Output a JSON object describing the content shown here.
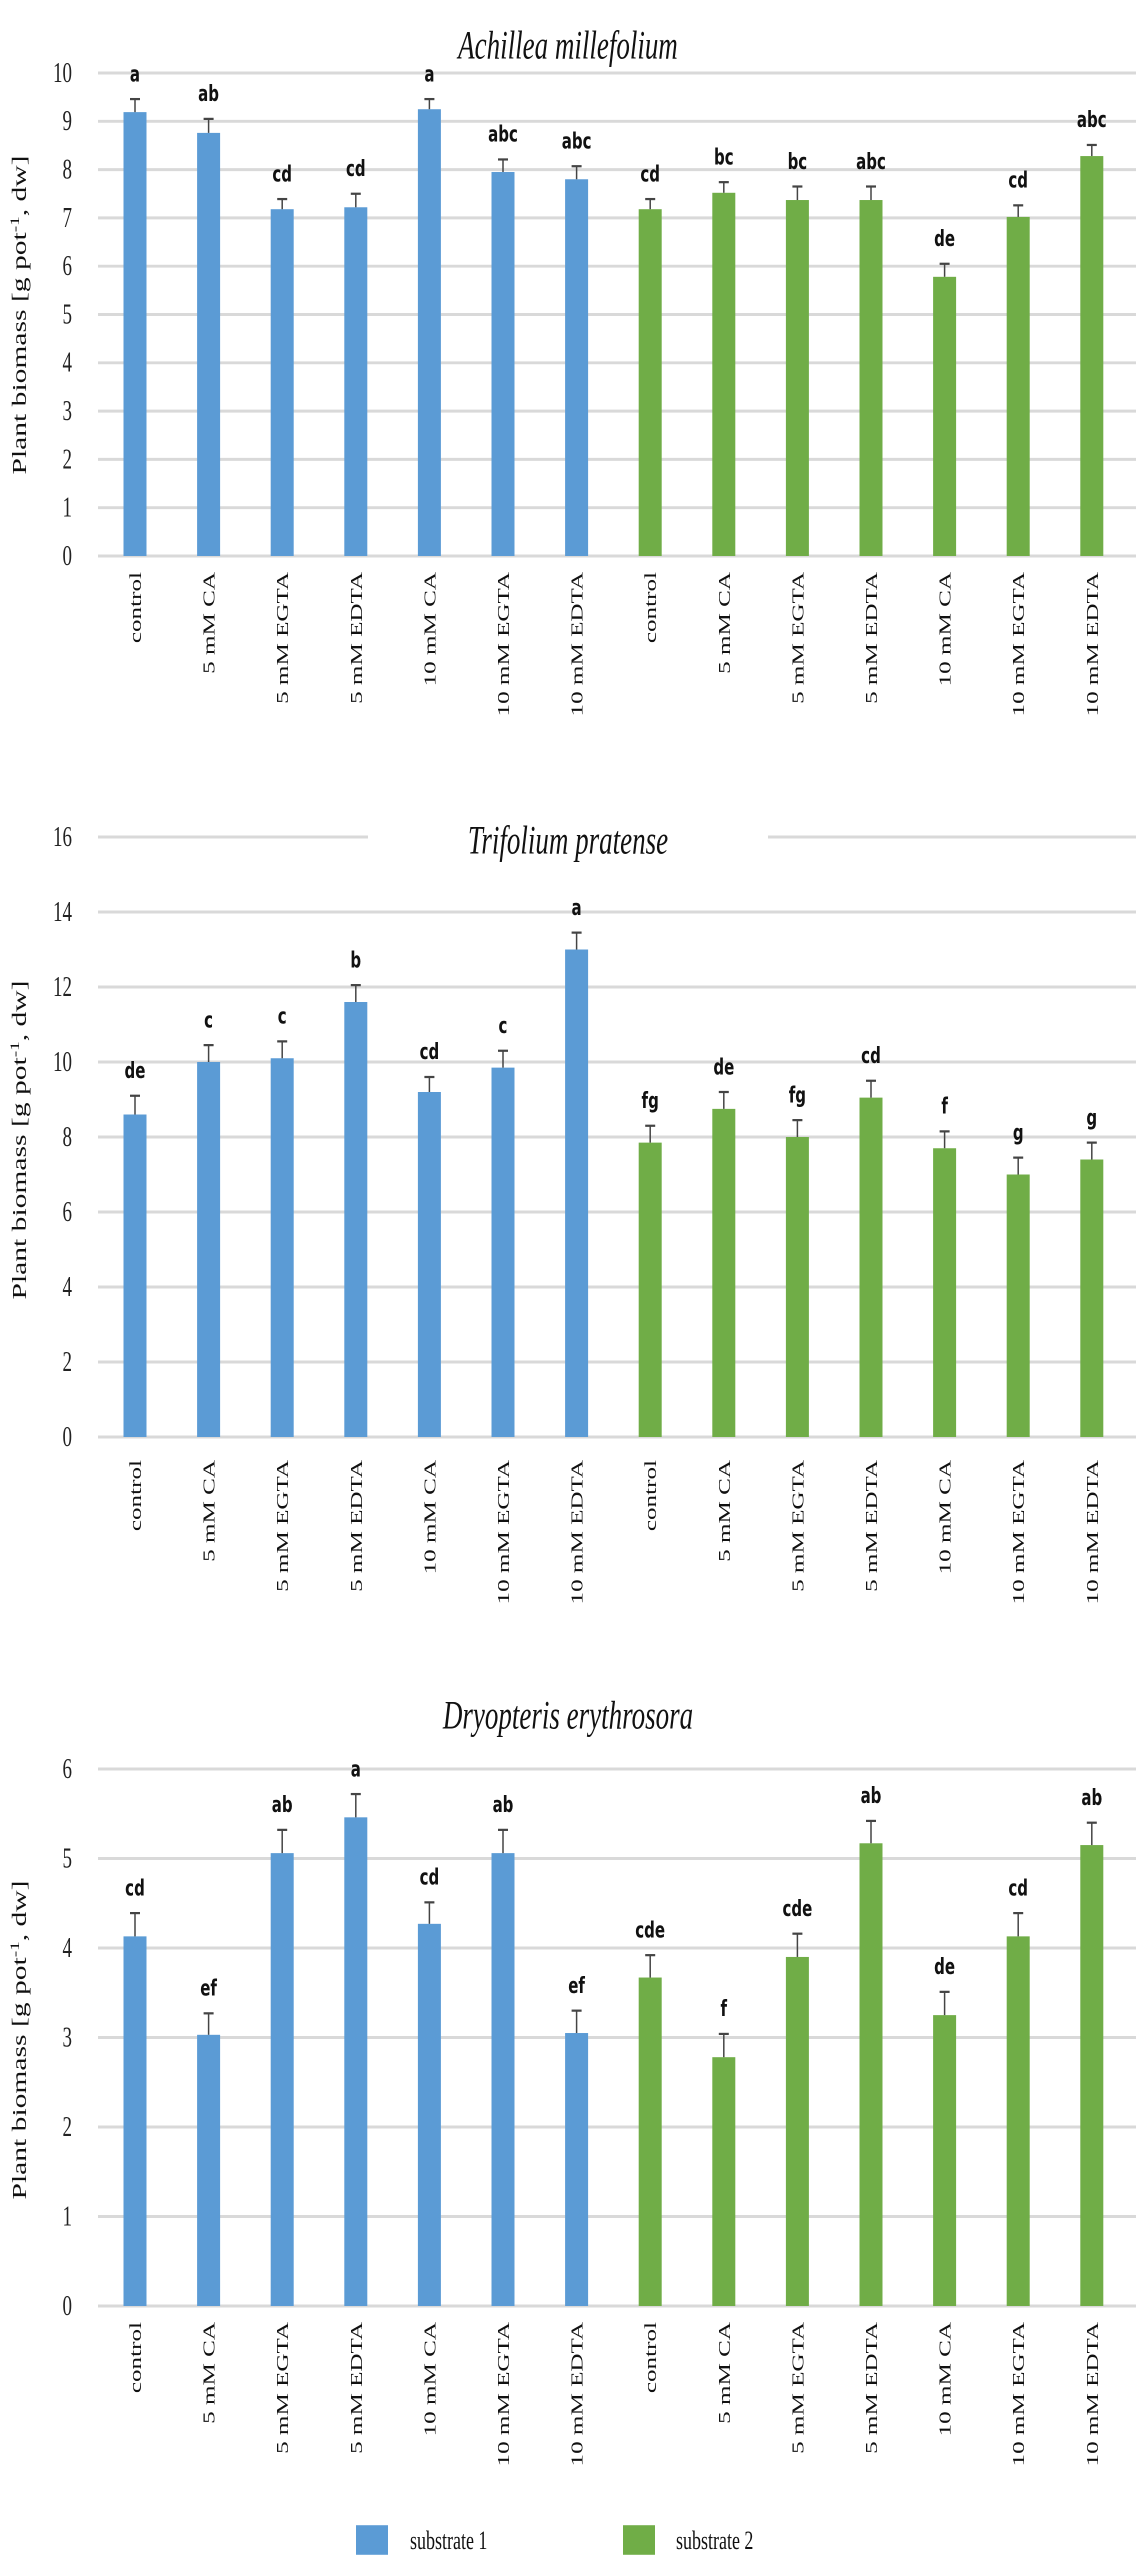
{
  "legend": [
    {
      "label": "substrate 1",
      "color": "#5B9BD5"
    },
    {
      "label": "substrate 2",
      "color": "#70AD47"
    }
  ],
  "chart_data": [
    {
      "type": "bar",
      "title": "Achillea millefolium",
      "ylabel": "Plant biomass [g pot-1, dw]",
      "ylim": [
        0,
        10
      ],
      "yticks": [
        0,
        1,
        2,
        3,
        4,
        5,
        6,
        7,
        8,
        9,
        10
      ],
      "grid": true,
      "legend_placement": "bottom",
      "categories": [
        "control",
        "5 mM CA",
        "5 mM EGTA",
        "5 mM EDTA",
        "10 mM CA",
        "10 mM EGTA",
        "10 mM EDTA",
        "control",
        "5 mM CA",
        "5 mM EGTA",
        "5 mM EDTA",
        "10 mM CA",
        "10 mM EGTA",
        "10 mM EDTA"
      ],
      "series": [
        {
          "name": "substrate 1",
          "values": [
            9.19,
            8.76,
            7.18,
            7.22,
            9.25,
            7.95,
            7.8,
            null,
            null,
            null,
            null,
            null,
            null,
            null
          ],
          "errors": [
            0.27,
            0.29,
            0.21,
            0.28,
            0.21,
            0.26,
            0.27,
            null,
            null,
            null,
            null,
            null,
            null,
            null
          ],
          "letters": [
            "a",
            "ab",
            "cd",
            "cd",
            "a",
            "abc",
            "abc",
            null,
            null,
            null,
            null,
            null,
            null,
            null
          ]
        },
        {
          "name": "substrate 2",
          "values": [
            null,
            null,
            null,
            null,
            null,
            null,
            null,
            7.18,
            7.52,
            7.37,
            7.37,
            5.78,
            7.02,
            8.28
          ],
          "errors": [
            null,
            null,
            null,
            null,
            null,
            null,
            null,
            0.21,
            0.22,
            0.28,
            0.28,
            0.27,
            0.24,
            0.23
          ],
          "letters": [
            null,
            null,
            null,
            null,
            null,
            null,
            null,
            "cd",
            "bc",
            "bc",
            "abc",
            "de",
            "cd",
            "abc"
          ]
        }
      ]
    },
    {
      "type": "bar",
      "title": "Trifolium pratense",
      "ylabel": "Plant biomass [g pot-1, dw]",
      "ylim": [
        0,
        16
      ],
      "yticks": [
        0,
        2,
        4,
        6,
        8,
        10,
        12,
        14,
        16
      ],
      "grid": true,
      "legend_placement": "bottom",
      "categories": [
        "control",
        "5 mM CA",
        "5 mM EGTA",
        "5 mM EDTA",
        "10 mM CA",
        "10 mM EGTA",
        "10 mM EDTA",
        "control",
        "5 mM CA",
        "5 mM EGTA",
        "5 mM EDTA",
        "10 mM CA",
        "10 mM EGTA",
        "10 mM EDTA"
      ],
      "series": [
        {
          "name": "substrate 1",
          "values": [
            8.6,
            10.0,
            10.1,
            11.6,
            9.2,
            9.85,
            13.0,
            null,
            null,
            null,
            null,
            null,
            null,
            null
          ],
          "errors": [
            0.5,
            0.45,
            0.45,
            0.45,
            0.4,
            0.45,
            0.45,
            null,
            null,
            null,
            null,
            null,
            null,
            null
          ],
          "letters": [
            "de",
            "c",
            "c",
            "b",
            "cd",
            "c",
            "a",
            null,
            null,
            null,
            null,
            null,
            null,
            null
          ]
        },
        {
          "name": "substrate 2",
          "values": [
            null,
            null,
            null,
            null,
            null,
            null,
            null,
            7.85,
            8.75,
            8.0,
            9.05,
            7.7,
            7.0,
            7.4
          ],
          "errors": [
            null,
            null,
            null,
            null,
            null,
            null,
            null,
            0.45,
            0.45,
            0.45,
            0.45,
            0.45,
            0.45,
            0.45
          ],
          "letters": [
            null,
            null,
            null,
            null,
            null,
            null,
            null,
            "fg",
            "de",
            "fg",
            "cd",
            "f",
            "g",
            "g"
          ]
        }
      ]
    },
    {
      "type": "bar",
      "title": "Dryopteris erythrosora",
      "ylabel": "Plant biomass [g pot-1, dw]",
      "ylim": [
        0,
        6
      ],
      "yticks": [
        0,
        1,
        2,
        3,
        4,
        5,
        6
      ],
      "grid": true,
      "legend_placement": "bottom",
      "categories": [
        "control",
        "5 mM CA",
        "5 mM EGTA",
        "5 mM EDTA",
        "10 mM CA",
        "10 mM EGTA",
        "10 mM EDTA",
        "control",
        "5 mM CA",
        "5 mM EGTA",
        "5 mM EDTA",
        "10 mM CA",
        "10 mM EGTA",
        "10 mM EDTA"
      ],
      "series": [
        {
          "name": "substrate 1",
          "values": [
            4.13,
            3.03,
            5.06,
            5.46,
            4.27,
            5.06,
            3.05,
            null,
            null,
            null,
            null,
            null,
            null,
            null
          ],
          "errors": [
            0.26,
            0.24,
            0.26,
            0.26,
            0.24,
            0.26,
            0.25,
            null,
            null,
            null,
            null,
            null,
            null,
            null
          ],
          "letters": [
            "cd",
            "ef",
            "ab",
            "a",
            "cd",
            "ab",
            "ef",
            null,
            null,
            null,
            null,
            null,
            null,
            null
          ]
        },
        {
          "name": "substrate 2",
          "values": [
            null,
            null,
            null,
            null,
            null,
            null,
            null,
            3.67,
            2.78,
            3.9,
            5.17,
            3.25,
            4.13,
            5.15
          ],
          "errors": [
            null,
            null,
            null,
            null,
            null,
            null,
            null,
            0.25,
            0.26,
            0.26,
            0.25,
            0.26,
            0.26,
            0.25
          ],
          "letters": [
            null,
            null,
            null,
            null,
            null,
            null,
            null,
            "cde",
            "f",
            "cde",
            "ab",
            "de",
            "cd",
            "ab"
          ]
        }
      ]
    }
  ]
}
